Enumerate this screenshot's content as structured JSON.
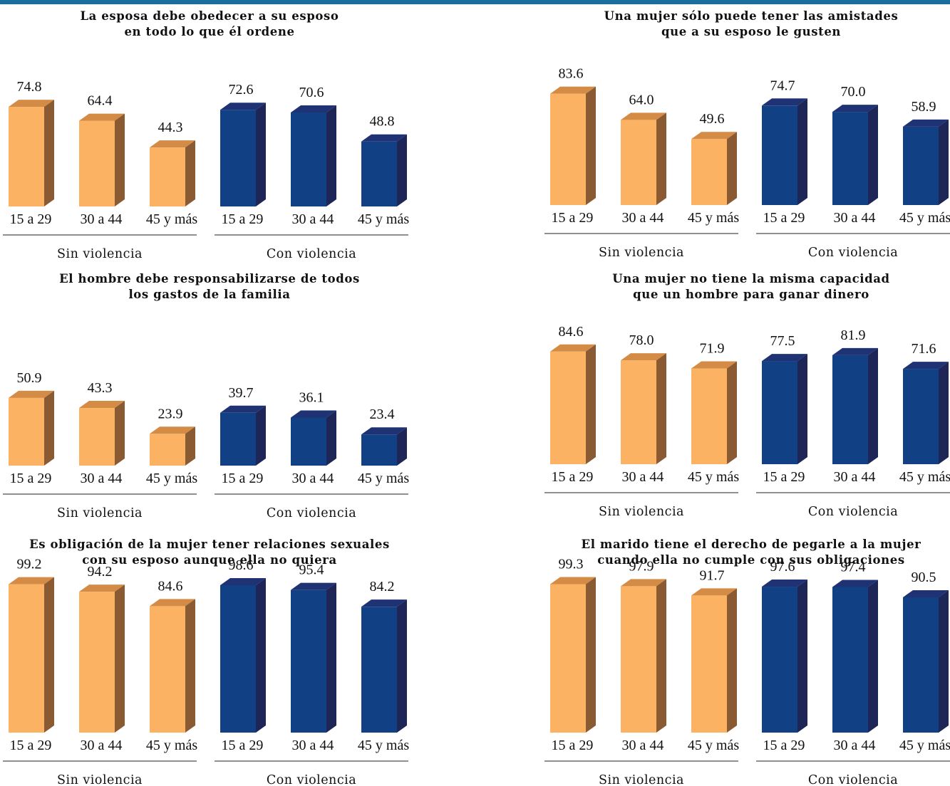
{
  "colors": {
    "sin_front": "#fbb363",
    "sin_side": "#8a5a33",
    "sin_top": "#d48b45",
    "con_front": "#114084",
    "con_side": "#1e2657",
    "con_top": "#1f3273",
    "bar": "#1b6f9c"
  },
  "chart_data": [
    {
      "type": "bar",
      "title": [
        "La esposa debe obedecer a su esposo",
        "en todo lo que él ordene"
      ],
      "categories": [
        "15 a 29",
        "30 a 44",
        "45 y más"
      ],
      "groups": [
        "Sin violencia",
        "Con violencia"
      ],
      "series": [
        {
          "name": "Sin violencia",
          "values": [
            74.8,
            64.4,
            44.3
          ]
        },
        {
          "name": "Con violencia",
          "values": [
            72.6,
            70.6,
            48.8
          ]
        }
      ],
      "ylim": [
        0,
        100
      ]
    },
    {
      "type": "bar",
      "title": [
        "Una mujer sólo puede tener las amistades",
        "que a su esposo le gusten"
      ],
      "categories": [
        "15 a 29",
        "30 a 44",
        "45 y más"
      ],
      "groups": [
        "Sin violencia",
        "Con violencia"
      ],
      "series": [
        {
          "name": "Sin violencia",
          "values": [
            83.6,
            64.0,
            49.6
          ]
        },
        {
          "name": "Con violencia",
          "values": [
            74.7,
            70.0,
            58.9
          ]
        }
      ],
      "ylim": [
        0,
        100
      ]
    },
    {
      "type": "bar",
      "title": [
        "El hombre debe responsabilizarse de todos",
        "los gastos de la familia"
      ],
      "categories": [
        "15 a 29",
        "30 a 44",
        "45 y más"
      ],
      "groups": [
        "Sin violencia",
        "Con violencia"
      ],
      "series": [
        {
          "name": "Sin violencia",
          "values": [
            50.9,
            43.3,
            23.9
          ]
        },
        {
          "name": "Con violencia",
          "values": [
            39.7,
            36.1,
            23.4
          ]
        }
      ],
      "ylim": [
        0,
        100
      ]
    },
    {
      "type": "bar",
      "title": [
        "Una mujer no tiene la misma capacidad",
        "que un hombre para ganar dinero"
      ],
      "categories": [
        "15 a 29",
        "30 a 44",
        "45 y más"
      ],
      "groups": [
        "Sin violencia",
        "Con violencia"
      ],
      "series": [
        {
          "name": "Sin violencia",
          "values": [
            84.6,
            78.0,
            71.9
          ]
        },
        {
          "name": "Con violencia",
          "values": [
            77.5,
            81.9,
            71.6
          ]
        }
      ],
      "ylim": [
        0,
        100
      ]
    },
    {
      "type": "bar",
      "title": [
        "Es obligación de la mujer tener relaciones sexuales",
        "con su esposo aunque ella no quiera"
      ],
      "categories": [
        "15 a 29",
        "30 a 44",
        "45 y más"
      ],
      "groups": [
        "Sin violencia",
        "Con violencia"
      ],
      "series": [
        {
          "name": "Sin violencia",
          "values": [
            99.2,
            94.2,
            84.6
          ]
        },
        {
          "name": "Con violencia",
          "values": [
            98.6,
            95.4,
            84.2
          ]
        }
      ],
      "ylim": [
        0,
        100
      ]
    },
    {
      "type": "bar",
      "title": [
        "El marido tiene el derecho de pegarle a la mujer",
        "cuando ella no cumple con sus obligaciones"
      ],
      "categories": [
        "15 a 29",
        "30 a 44",
        "45 y más"
      ],
      "groups": [
        "Sin violencia",
        "Con violencia"
      ],
      "series": [
        {
          "name": "Sin violencia",
          "values": [
            99.3,
            97.9,
            91.7
          ]
        },
        {
          "name": "Con violencia",
          "values": [
            97.6,
            97.4,
            90.5
          ]
        }
      ],
      "ylim": [
        0,
        100
      ]
    }
  ]
}
